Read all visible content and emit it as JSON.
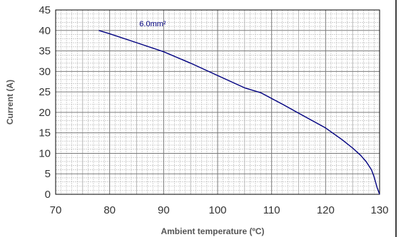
{
  "chart_data": {
    "type": "line",
    "title": "",
    "xlabel": "Ambient temperature (ºC)",
    "ylabel": "Current (A)",
    "xlim": [
      70,
      130
    ],
    "ylim": [
      0,
      45
    ],
    "x_ticks": [
      70,
      80,
      90,
      100,
      110,
      120,
      130
    ],
    "y_ticks": [
      0,
      5,
      10,
      15,
      20,
      25,
      30,
      35,
      40,
      45
    ],
    "x_tick_labels": [
      "70",
      "80",
      "90",
      "100",
      "110",
      "120",
      "130"
    ],
    "y_tick_labels": [
      "0",
      "5",
      "10",
      "15",
      "20",
      "25",
      "30",
      "35",
      "40",
      "45"
    ],
    "grid": true,
    "series": [
      {
        "name": "6.0mm²",
        "color": "#000080",
        "x": [
          78,
          80,
          85,
          90,
          95,
          100,
          105,
          108,
          112,
          115,
          120,
          123,
          125,
          126.5,
          127.5,
          128.5,
          129,
          129.5,
          130
        ],
        "y": [
          40,
          39.2,
          37,
          34.8,
          32,
          29,
          26,
          24.8,
          22,
          19.8,
          16.2,
          13.4,
          11.3,
          9.5,
          8,
          6,
          4.2,
          1.8,
          0
        ]
      }
    ],
    "annotations": [
      {
        "text": "6.0mm²",
        "x": 85.5,
        "y": 41
      }
    ]
  }
}
